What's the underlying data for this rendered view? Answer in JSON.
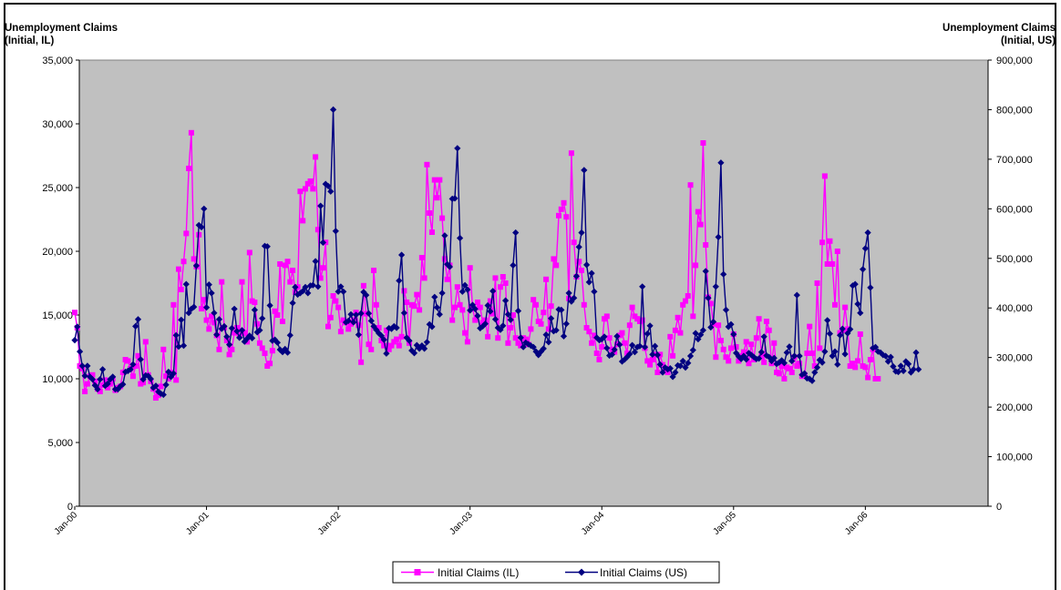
{
  "chart_data": {
    "type": "line",
    "ylabel_left": [
      "Unemployment Claims",
      "(Initial, IL)"
    ],
    "ylabel_right": [
      "Unemployment Claims",
      "(Initial, US)"
    ],
    "ylim_left": [
      0,
      35000
    ],
    "ylim_right": [
      0,
      900000
    ],
    "yticks_left": [
      "0",
      "5,000",
      "10,000",
      "15,000",
      "20,000",
      "25,000",
      "30,000",
      "35,000"
    ],
    "yticks_right": [
      "0",
      "100,000",
      "200,000",
      "300,000",
      "400,000",
      "500,000",
      "600,000",
      "700,000",
      "800,000",
      "900,000"
    ],
    "x_tick_labels": [
      "Jan-00",
      "Jan-01",
      "Jan-02",
      "Jan-03",
      "Jan-04",
      "Jan-05",
      "Jan-06"
    ],
    "x_unit": "week index from first plotted week (52 weeks per year tick)",
    "plot_background": "#c0c0c0",
    "grid": false,
    "legend_position": "bottom-center",
    "series": [
      {
        "name": "Initial Claims (IL)",
        "axis": "left",
        "color": "#ff00ff",
        "marker": "square",
        "values": [
          15200,
          14000,
          11000,
          10800,
          9000,
          9600,
          10200,
          10300,
          9800,
          9200,
          9000,
          9500,
          9900,
          9300,
          9600,
          10000,
          9100,
          9300,
          9400,
          10500,
          11500,
          11400,
          10800,
          10200,
          11000,
          11800,
          9600,
          9700,
          12900,
          10300,
          9800,
          9200,
          8500,
          8700,
          9400,
          12300,
          10200,
          10000,
          10500,
          15800,
          9900,
          18600,
          17000,
          19200,
          21400,
          26500,
          29300,
          19400,
          18800,
          21300,
          15500,
          16200,
          14600,
          13900,
          14900,
          14400,
          13400,
          12300,
          17600,
          14000,
          13000,
          11900,
          12300,
          13600,
          14000,
          13400,
          17600,
          13600,
          12900,
          19900,
          16100,
          16000,
          14300,
          12800,
          12400,
          12000,
          11000,
          11200,
          12200,
          15300,
          15000,
          19000,
          14500,
          18900,
          19200,
          17600,
          18500,
          16800,
          17200,
          24700,
          22400,
          24900,
          25300,
          25500,
          24900,
          27400,
          21700,
          17900,
          18700,
          20700,
          14100,
          14800,
          16500,
          16100,
          15600,
          13700,
          14600,
          14400,
          13900,
          14300,
          14600,
          15200,
          14200,
          11300,
          17300,
          15100,
          12700,
          12300,
          18500,
          15800,
          14000,
          13000,
          12600,
          13800,
          12300,
          12600,
          12900,
          13100,
          12600,
          13300,
          16900,
          16000,
          12800,
          15800,
          15700,
          16600,
          15400,
          19500,
          17900,
          26800,
          23000,
          21500,
          25600,
          24200,
          25600,
          22600,
          19400,
          17800,
          18900,
          14600,
          15600,
          17200,
          15800,
          15400,
          13600,
          12900,
          18700,
          15500,
          14600,
          16000,
          15600,
          14400,
          14600,
          13300,
          16100,
          15100,
          17900,
          13200,
          17200,
          18000,
          17500,
          12800,
          14000,
          15000,
          13200,
          12800,
          12600,
          13200,
          13100,
          12700,
          13900,
          16200,
          15800,
          14500,
          14300,
          15200,
          17800,
          13900,
          15700,
          19400,
          18900,
          22800,
          23300,
          23800,
          22700,
          16300,
          27700,
          20700,
          18000,
          19200,
          18500,
          15800,
          14000,
          13700,
          12800,
          13400,
          12000,
          11500,
          12500,
          14700,
          14900,
          13200,
          12300,
          12100,
          12700,
          13400,
          13600,
          12800,
          12000,
          14200,
          15600,
          14900,
          14700,
          14500,
          14600,
          12400,
          11400,
          11100,
          11500,
          11900,
          10500,
          11900,
          11100,
          10700,
          10500,
          13300,
          11800,
          13800,
          14800,
          13600,
          15800,
          16100,
          16500,
          25200,
          14900,
          18900,
          23100,
          22100,
          28500,
          20500,
          16400,
          15900,
          14300,
          11700,
          14200,
          13000,
          12300,
          11700,
          11400,
          12400,
          13500,
          12500,
          11400,
          11800,
          12100,
          12900,
          11200,
          12700,
          11500,
          13200,
          14700,
          11800,
          11300,
          14500,
          13800,
          11200,
          12800,
          10500,
          10400,
          11000,
          10000,
          10900,
          10800,
          10500,
          11700,
          11000,
          11200,
          10200,
          10300,
          12000,
          14100,
          12000,
          11000,
          17500,
          12400,
          20700,
          25900,
          19000,
          20800,
          19000,
          15800,
          20000,
          13600,
          13800,
          15600,
          13900,
          11000,
          11200,
          10900,
          11400,
          13500,
          11000,
          10900,
          10100,
          11500,
          12300,
          10000,
          10000
        ]
      },
      {
        "name": "Initial Claims (US)",
        "axis": "right",
        "color": "#000080",
        "marker": "diamond",
        "values": [
          335000,
          362000,
          312000,
          283000,
          263000,
          283000,
          261000,
          256000,
          244000,
          236000,
          256000,
          276000,
          243000,
          247000,
          256000,
          261000,
          236000,
          236000,
          242000,
          246000,
          271000,
          273000,
          276000,
          286000,
          363000,
          377000,
          296000,
          256000,
          264000,
          263000,
          257000,
          239000,
          243000,
          231000,
          227000,
          225000,
          245000,
          271000,
          261000,
          268000,
          345000,
          322000,
          376000,
          324000,
          448000,
          390000,
          398000,
          402000,
          485000,
          567000,
          563000,
          600000,
          401000,
          447000,
          430000,
          390000,
          346000,
          377000,
          358000,
          363000,
          342000,
          326000,
          359000,
          398000,
          353000,
          340000,
          355000,
          332000,
          338000,
          344000,
          339000,
          396000,
          351000,
          355000,
          379000,
          525000,
          524000,
          405000,
          334000,
          336000,
          330000,
          316000,
          311000,
          317000,
          310000,
          345000,
          410000,
          442000,
          427000,
          430000,
          434000,
          442000,
          430000,
          445000,
          446000,
          494000,
          443000,
          606000,
          532000,
          650000,
          646000,
          635000,
          800000,
          555000,
          433000,
          443000,
          433000,
          371000,
          374000,
          387000,
          371000,
          386000,
          346000,
          389000,
          432000,
          426000,
          389000,
          374000,
          363000,
          356000,
          349000,
          344000,
          336000,
          308000,
          359000,
          358000,
          363000,
          360000,
          455000,
          507000,
          390000,
          340000,
          334000,
          314000,
          309000,
          325000,
          318000,
          324000,
          318000,
          331000,
          367000,
          362000,
          422000,
          401000,
          387000,
          430000,
          546000,
          488000,
          483000,
          620000,
          621000,
          722000,
          541000,
          433000,
          446000,
          437000,
          395000,
          406000,
          398000,
          384000,
          359000,
          363000,
          368000,
          405000,
          393000,
          434000,
          377000,
          360000,
          356000,
          364000,
          415000,
          387000,
          376000,
          486000,
          552000,
          394000,
          340000,
          321000,
          330000,
          327000,
          324000,
          321000,
          312000,
          305000,
          312000,
          318000,
          346000,
          331000,
          379000,
          353000,
          355000,
          397000,
          396000,
          343000,
          368000,
          430000,
          413000,
          420000,
          464000,
          523000,
          552000,
          678000,
          487000,
          452000,
          470000,
          433000,
          340000,
          335000,
          337000,
          342000,
          319000,
          304000,
          306000,
          316000,
          343000,
          326000,
          292000,
          296000,
          301000,
          307000,
          325000,
          311000,
          321000,
          323000,
          443000,
          321000,
          348000,
          364000,
          306000,
          323000,
          305000,
          286000,
          270000,
          280000,
          276000,
          278000,
          261000,
          270000,
          284000,
          283000,
          293000,
          280000,
          289000,
          303000,
          315000,
          349000,
          337000,
          346000,
          355000,
          474000,
          420000,
          361000,
          372000,
          443000,
          543000,
          693000,
          468000,
          396000,
          362000,
          367000,
          347000,
          309000,
          302000,
          297000,
          303000,
          296000,
          309000,
          305000,
          301000,
          297000,
          298000,
          311000,
          342000,
          304000,
          301000,
          293000,
          299000,
          287000,
          290000,
          294000,
          289000,
          310000,
          322000,
          293000,
          303000,
          426000,
          303000,
          265000,
          268000,
          258000,
          257000,
          253000,
          270000,
          280000,
          295000,
          290000,
          312000,
          375000,
          348000,
          303000,
          312000,
          286000,
          345000,
          358000,
          307000,
          349000,
          357000,
          445000,
          448000,
          408000,
          390000,
          478000,
          520000,
          552000,
          441000,
          319000,
          321000,
          312000,
          310000,
          305000,
          303000,
          292000,
          301000,
          282000,
          272000,
          271000,
          283000,
          273000,
          292000,
          287000,
          270000,
          276000,
          310000,
          276000
        ]
      }
    ]
  }
}
